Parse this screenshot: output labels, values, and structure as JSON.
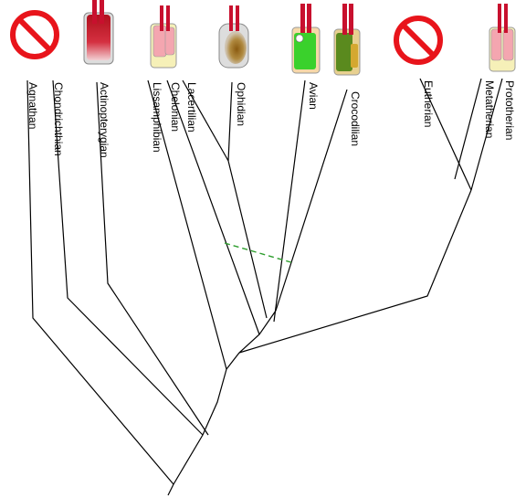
{
  "taxa": [
    {
      "key": "agnathan",
      "label": "Agnathan",
      "icon": "prohibited-icon"
    },
    {
      "key": "chondrichthian",
      "label": "Chondrichthian",
      "icon": "none"
    },
    {
      "key": "actinopterygian",
      "label": "Actinopterygian",
      "icon": "red-gradient-organ-icon"
    },
    {
      "key": "lissamphibian",
      "label": "Lissamphibian",
      "icon": "pink-cream-organ-icon"
    },
    {
      "key": "chelonian",
      "label": "Chelonian",
      "icon": "none"
    },
    {
      "key": "lacertilian",
      "label": "Lacertilian",
      "icon": "none"
    },
    {
      "key": "ophidian",
      "label": "Ophidian",
      "icon": "gray-green-organ-icon"
    },
    {
      "key": "avian",
      "label": "Avian",
      "icon": "green-organ-icon"
    },
    {
      "key": "crocodilian",
      "label": "Crocodilian",
      "icon": "olive-organ-icon"
    },
    {
      "key": "eutherian",
      "label": "Eutherian",
      "icon": "prohibited-icon"
    },
    {
      "key": "metatherian",
      "label": "Metatherian",
      "icon": "none"
    },
    {
      "key": "prototherian",
      "label": "Prototherian",
      "icon": "pink-pair-organ-icon"
    }
  ],
  "colors": {
    "branch": "#000000",
    "dashed_link": "#2e9e2e",
    "prohibited": "#e8141b",
    "organ_red": "#c8102e",
    "organ_pink": "#f4a6b0",
    "organ_cream": "#f6f0b8",
    "organ_green": "#3ad12c",
    "organ_olive": "#5a8a1e"
  }
}
